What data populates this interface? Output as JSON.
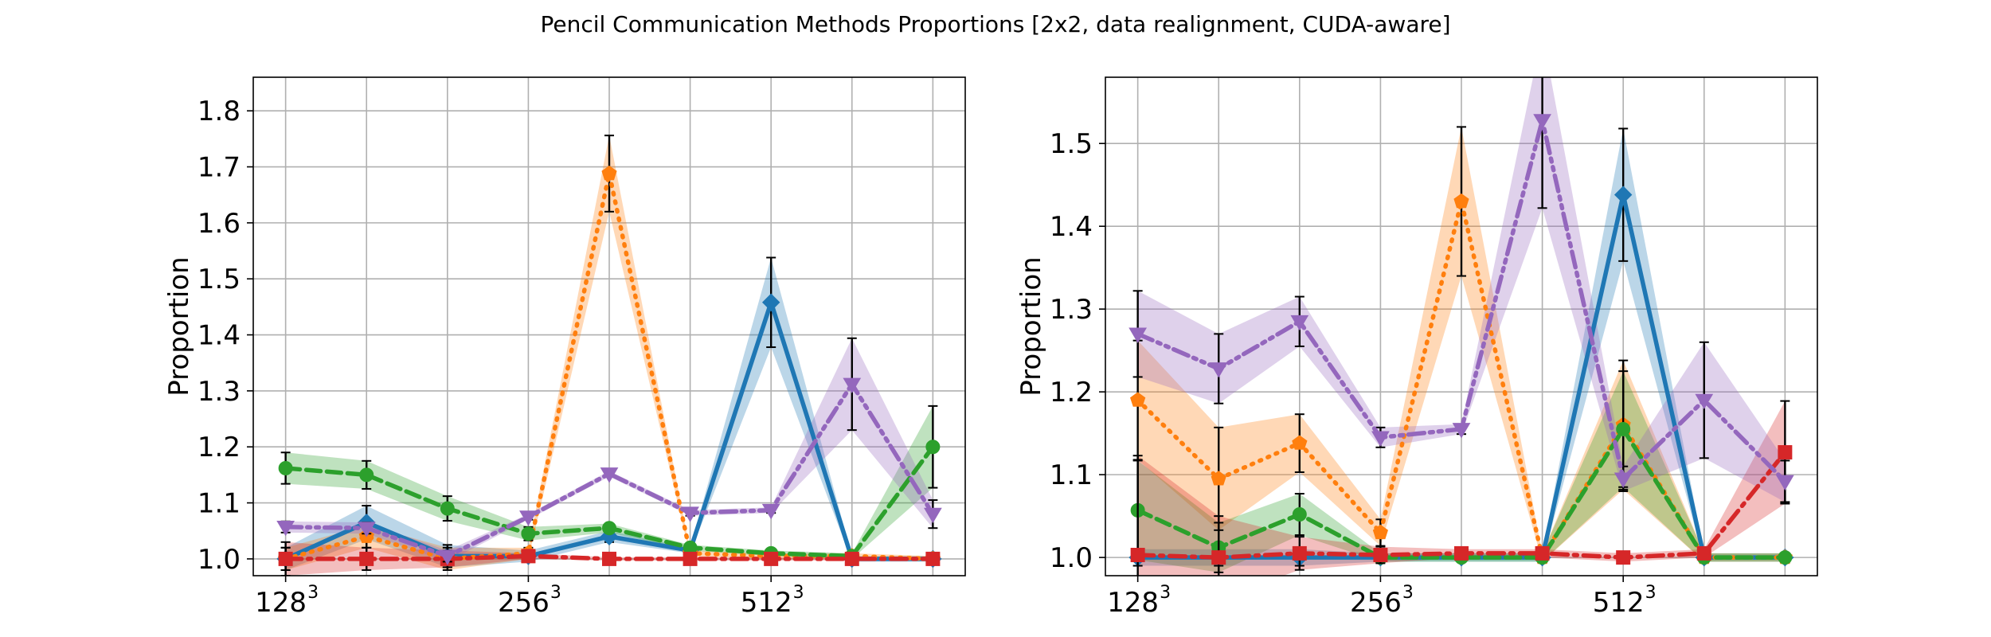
{
  "title": "Pencil Communication Methods Proportions [2x2, data realignment, CUDA-aware]",
  "chart_data": [
    {
      "type": "line",
      "ylabel": "Proportion",
      "ylim": [
        0.97,
        1.86
      ],
      "yticks": [
        1.0,
        1.1,
        1.2,
        1.3,
        1.4,
        1.5,
        1.6,
        1.7,
        1.8
      ],
      "ytick_labels": [
        "1.0",
        "1.1",
        "1.2",
        "1.3",
        "1.4",
        "1.5",
        "1.6",
        "1.7",
        "1.8"
      ],
      "xlim": [
        -0.4,
        8.4
      ],
      "xticks": [
        0,
        3,
        6
      ],
      "xtick_labels": [
        "128",
        "256",
        "512"
      ],
      "xtick_exponent": "3",
      "grid": true,
      "series": [
        {
          "color": "#1f77b4",
          "linestyle": "solid",
          "marker": "diamond",
          "x": [
            0,
            1,
            2,
            3,
            4,
            5,
            6,
            7,
            8
          ],
          "y": [
            1.0,
            1.065,
            1.005,
            1.005,
            1.04,
            1.015,
            1.458,
            1.0,
            1.0
          ],
          "err": [
            0.02,
            0.03,
            0.02,
            0.01,
            0.01,
            0.005,
            0.08,
            0.005,
            0.005
          ]
        },
        {
          "color": "#ff7f0e",
          "linestyle": "dotted",
          "marker": "pentagon",
          "x": [
            0,
            1,
            2,
            3,
            4,
            5,
            6,
            7,
            8
          ],
          "y": [
            1.0,
            1.04,
            1.0,
            1.01,
            1.688,
            1.01,
            1.005,
            1.005,
            1.0
          ],
          "err": [
            0.02,
            0.02,
            0.02,
            0.01,
            0.068,
            0.005,
            0.005,
            0.005,
            0.005
          ]
        },
        {
          "color": "#2ca02c",
          "linestyle": "dashed",
          "marker": "circle",
          "x": [
            0,
            1,
            2,
            3,
            4,
            5,
            6,
            7,
            8
          ],
          "y": [
            1.162,
            1.15,
            1.09,
            1.045,
            1.055,
            1.02,
            1.01,
            1.005,
            1.2
          ],
          "err": [
            0.028,
            0.025,
            0.022,
            0.012,
            0.008,
            0.005,
            0.005,
            0.005,
            0.073
          ]
        },
        {
          "color": "#d62728",
          "linestyle": "dashdot",
          "marker": "square",
          "x": [
            0,
            1,
            2,
            3,
            4,
            5,
            6,
            7,
            8
          ],
          "y": [
            1.0,
            1.0,
            1.0,
            1.005,
            1.0,
            1.0,
            1.0,
            1.0,
            1.0
          ],
          "err": [
            0.03,
            0.02,
            0.015,
            0.005,
            0.003,
            0.003,
            0.003,
            0.003,
            0.003
          ]
        },
        {
          "color": "#9467bd",
          "linestyle": "dashdotdot",
          "marker": "tri_down",
          "x": [
            0,
            1,
            2,
            3,
            4,
            5,
            6,
            7,
            8
          ],
          "y": [
            1.057,
            1.055,
            1.005,
            1.075,
            1.152,
            1.082,
            1.087,
            1.312,
            1.08
          ],
          "err": [
            0.01,
            0.01,
            0.01,
            0.005,
            0.005,
            0.005,
            0.005,
            0.082,
            0.025
          ]
        }
      ]
    },
    {
      "type": "line",
      "ylabel": "Proportion",
      "ylim": [
        0.978,
        1.58
      ],
      "yticks": [
        1.0,
        1.1,
        1.2,
        1.3,
        1.4,
        1.5
      ],
      "ytick_labels": [
        "1.0",
        "1.1",
        "1.2",
        "1.3",
        "1.4",
        "1.5"
      ],
      "xlim": [
        -0.4,
        8.4
      ],
      "xticks": [
        0,
        3,
        6
      ],
      "xtick_labels": [
        "128",
        "256",
        "512"
      ],
      "xtick_exponent": "3",
      "grid": true,
      "series": [
        {
          "color": "#1f77b4",
          "linestyle": "solid",
          "marker": "diamond",
          "x": [
            0,
            1,
            2,
            3,
            4,
            5,
            6,
            7,
            8
          ],
          "y": [
            1.0,
            1.0,
            1.0,
            1.0,
            1.0,
            1.0,
            1.438,
            1.0,
            1.0
          ],
          "err": [
            0.01,
            0.01,
            0.01,
            0.005,
            0.005,
            0.005,
            0.08,
            0.005,
            0.005
          ]
        },
        {
          "color": "#ff7f0e",
          "linestyle": "dotted",
          "marker": "pentagon",
          "x": [
            0,
            1,
            2,
            3,
            4,
            5,
            6,
            7,
            8
          ],
          "y": [
            1.19,
            1.095,
            1.138,
            1.03,
            1.43,
            1.0,
            1.16,
            1.0,
            1.0
          ],
          "err": [
            0.072,
            0.062,
            0.035,
            0.016,
            0.09,
            0.005,
            0.078,
            0.005,
            0.005
          ]
        },
        {
          "color": "#2ca02c",
          "linestyle": "dashed",
          "marker": "circle",
          "x": [
            0,
            1,
            2,
            3,
            4,
            5,
            6,
            7,
            8
          ],
          "y": [
            1.057,
            1.012,
            1.052,
            1.0,
            1.0,
            1.0,
            1.155,
            1.0,
            1.0
          ],
          "err": [
            0.06,
            0.03,
            0.025,
            0.005,
            0.005,
            0.005,
            0.07,
            0.005,
            0.005
          ]
        },
        {
          "color": "#d62728",
          "linestyle": "dashdot",
          "marker": "square",
          "x": [
            0,
            1,
            2,
            3,
            4,
            5,
            6,
            7,
            8
          ],
          "y": [
            1.003,
            1.0,
            1.005,
            1.003,
            1.005,
            1.005,
            1.0,
            1.005,
            1.127
          ],
          "err": [
            0.12,
            0.05,
            0.02,
            0.01,
            0.005,
            0.005,
            0.005,
            0.005,
            0.062
          ]
        },
        {
          "color": "#9467bd",
          "linestyle": "dashdotdot",
          "marker": "tri_down",
          "x": [
            0,
            1,
            2,
            3,
            4,
            5,
            6,
            7,
            8
          ],
          "y": [
            1.27,
            1.228,
            1.285,
            1.145,
            1.155,
            1.528,
            1.095,
            1.19,
            1.092
          ],
          "err": [
            0.052,
            0.042,
            0.03,
            0.012,
            0.006,
            0.106,
            0.015,
            0.07,
            0.025
          ]
        }
      ]
    }
  ]
}
